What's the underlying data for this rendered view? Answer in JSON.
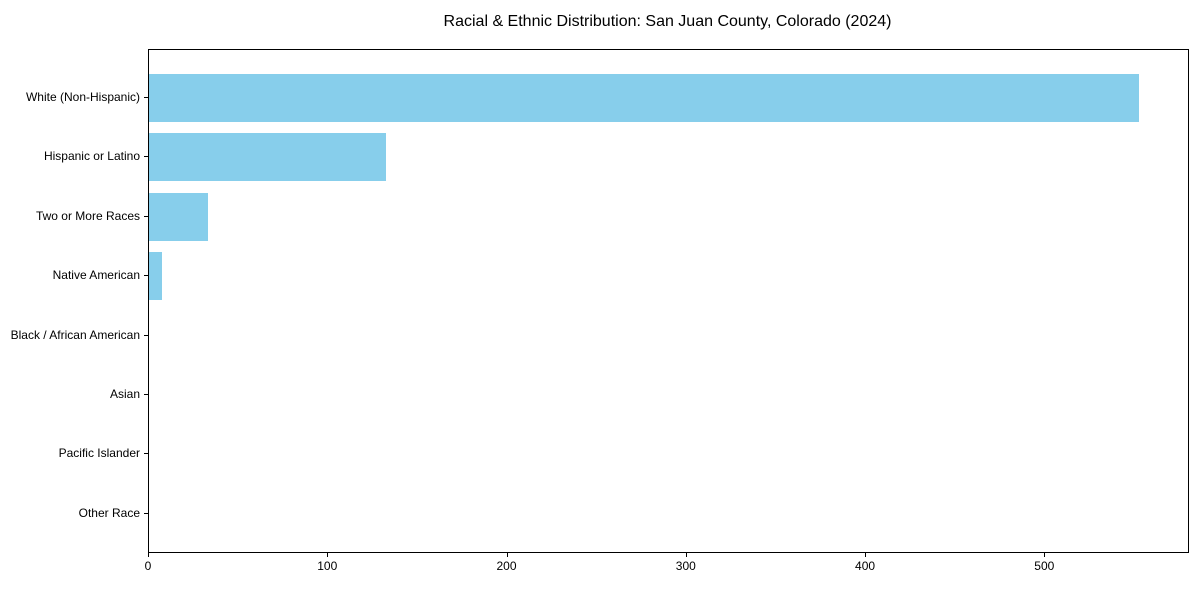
{
  "chart_data": {
    "type": "bar",
    "orientation": "horizontal",
    "title": "Racial & Ethnic Distribution: San Juan County, Colorado (2024)",
    "categories": [
      "White (Non-Hispanic)",
      "Hispanic or Latino",
      "Two or More Races",
      "Native American",
      "Black / African American",
      "Asian",
      "Pacific Islander",
      "Other Race"
    ],
    "values": [
      552,
      132,
      33,
      7,
      0,
      0,
      0,
      0
    ],
    "xlabel": "",
    "ylabel": "",
    "xlim": [
      0,
      579.6
    ],
    "x_ticks": [
      0,
      100,
      200,
      300,
      400,
      500
    ],
    "bar_color": "#87CEEB",
    "grid": false,
    "legend": false
  }
}
